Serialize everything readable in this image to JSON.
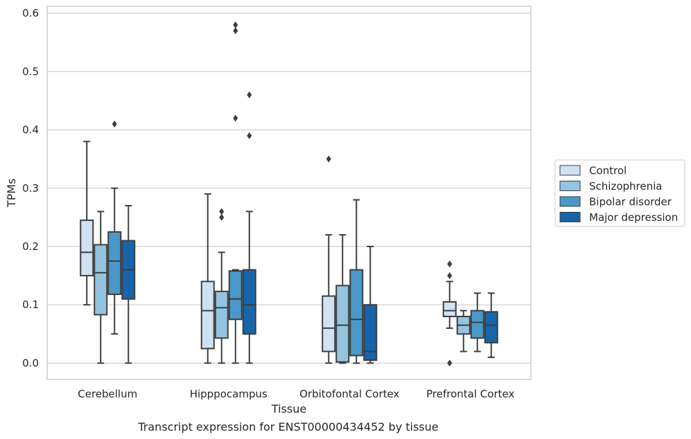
{
  "caption": "Transcript expression for ENST00000434452 by tissue",
  "chart_data": {
    "type": "box",
    "xlabel": "Tissue",
    "ylabel": "TPMs",
    "ylim": [
      -0.028,
      0.612
    ],
    "yticks": [
      "0.0",
      "0.1",
      "0.2",
      "0.3",
      "0.4",
      "0.5",
      "0.6"
    ],
    "grid": true,
    "legend_position": "right",
    "categories": [
      "Cerebellum",
      "Hipppocampus",
      "Orbitofontal Cortex",
      "Prefrontal Cortex"
    ],
    "series": [
      {
        "name": "Control",
        "color": "#d0e1f2",
        "boxes": [
          {
            "whisker_low": 0.1,
            "q1": 0.15,
            "median": 0.19,
            "q3": 0.245,
            "whisker_high": 0.38,
            "outliers": []
          },
          {
            "whisker_low": 0.0,
            "q1": 0.025,
            "median": 0.09,
            "q3": 0.14,
            "whisker_high": 0.29,
            "outliers": []
          },
          {
            "whisker_low": 0.0,
            "q1": 0.02,
            "median": 0.06,
            "q3": 0.115,
            "whisker_high": 0.22,
            "outliers": [
              0.35
            ]
          },
          {
            "whisker_low": 0.06,
            "q1": 0.08,
            "median": 0.09,
            "q3": 0.105,
            "whisker_high": 0.14,
            "outliers": [
              0.17,
              0.15,
              0.0
            ]
          }
        ]
      },
      {
        "name": "Schizophrenia",
        "color": "#94c4df",
        "boxes": [
          {
            "whisker_low": 0.0,
            "q1": 0.083,
            "median": 0.155,
            "q3": 0.203,
            "whisker_high": 0.26,
            "outliers": []
          },
          {
            "whisker_low": 0.0,
            "q1": 0.043,
            "median": 0.095,
            "q3": 0.123,
            "whisker_high": 0.19,
            "outliers": [
              0.26,
              0.25
            ]
          },
          {
            "whisker_low": 0.0,
            "q1": 0.002,
            "median": 0.065,
            "q3": 0.133,
            "whisker_high": 0.22,
            "outliers": []
          },
          {
            "whisker_low": 0.02,
            "q1": 0.05,
            "median": 0.065,
            "q3": 0.08,
            "whisker_high": 0.09,
            "outliers": []
          }
        ]
      },
      {
        "name": "Bipolar disorder",
        "color": "#4a98c9",
        "boxes": [
          {
            "whisker_low": 0.05,
            "q1": 0.118,
            "median": 0.175,
            "q3": 0.225,
            "whisker_high": 0.3,
            "outliers": [
              0.41
            ]
          },
          {
            "whisker_low": 0.0,
            "q1": 0.075,
            "median": 0.11,
            "q3": 0.158,
            "whisker_high": 0.16,
            "outliers": [
              0.58,
              0.57,
              0.42
            ]
          },
          {
            "whisker_low": 0.0,
            "q1": 0.013,
            "median": 0.075,
            "q3": 0.16,
            "whisker_high": 0.28,
            "outliers": []
          },
          {
            "whisker_low": 0.02,
            "q1": 0.043,
            "median": 0.07,
            "q3": 0.09,
            "whisker_high": 0.12,
            "outliers": []
          }
        ]
      },
      {
        "name": "Major depression",
        "color": "#1764ab",
        "boxes": [
          {
            "whisker_low": 0.0,
            "q1": 0.11,
            "median": 0.16,
            "q3": 0.21,
            "whisker_high": 0.27,
            "outliers": []
          },
          {
            "whisker_low": 0.0,
            "q1": 0.05,
            "median": 0.1,
            "q3": 0.16,
            "whisker_high": 0.26,
            "outliers": [
              0.46,
              0.39
            ]
          },
          {
            "whisker_low": 0.0,
            "q1": 0.005,
            "median": 0.02,
            "q3": 0.1,
            "whisker_high": 0.2,
            "outliers": []
          },
          {
            "whisker_low": 0.01,
            "q1": 0.035,
            "median": 0.065,
            "q3": 0.088,
            "whisker_high": 0.12,
            "outliers": []
          }
        ]
      }
    ]
  }
}
